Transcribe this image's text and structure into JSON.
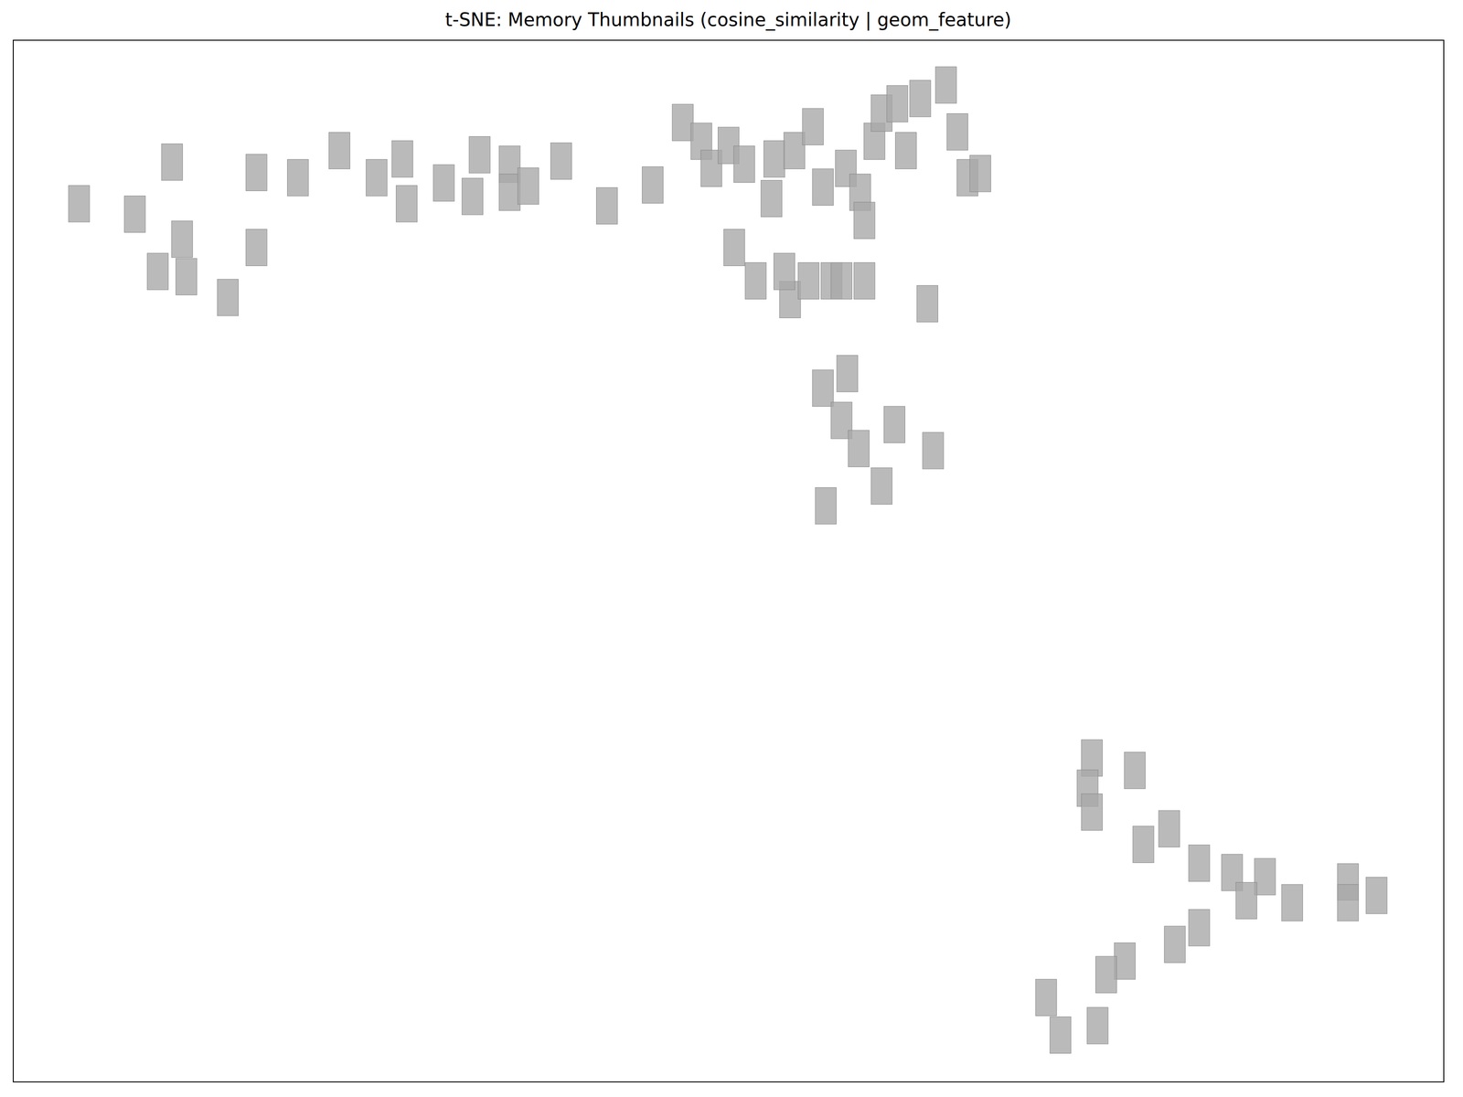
{
  "chart_data": {
    "type": "scatter",
    "title": "t-SNE: Memory Thumbnails (cosine_similarity | geom_feature)",
    "x": [
      4.6,
      8.5,
      11.1,
      11.8,
      10.1,
      12.1,
      15.0,
      17.0,
      17.0,
      19.9,
      22.8,
      25.4,
      27.2,
      27.5,
      30.1,
      32.6,
      32.1,
      34.7,
      34.7,
      36.0,
      38.3,
      41.5,
      44.7,
      46.8,
      48.1,
      48.8,
      50.0,
      51.1,
      50.4,
      51.9,
      53.2,
      53.0,
      54.3,
      53.9,
      54.6,
      55.9,
      55.6,
      56.6,
      57.2,
      58.2,
      57.9,
      59.5,
      59.2,
      60.2,
      60.7,
      61.8,
      62.4,
      63.4,
      65.2,
      66.0,
      66.7,
      67.6,
      63.9,
      56.6,
      57.9,
      58.3,
      59.1,
      61.6,
      64.3,
      60.7,
      56.8,
      59.5,
      75.4,
      78.4,
      75.1,
      75.4,
      80.8,
      79.0,
      82.9,
      85.2,
      87.5,
      93.3,
      95.3,
      86.2,
      89.4,
      93.3,
      81.2,
      77.7,
      76.4,
      72.2,
      75.8,
      73.2,
      82.9
    ],
    "values": [
      84.3,
      83.3,
      88.3,
      80.9,
      77.8,
      77.3,
      75.3,
      80.1,
      87.3,
      86.8,
      89.4,
      86.8,
      88.6,
      84.3,
      86.3,
      89.0,
      85.0,
      88.1,
      85.4,
      86.0,
      88.4,
      84.1,
      86.1,
      92.1,
      90.3,
      87.7,
      89.9,
      88.1,
      80.1,
      76.9,
      88.6,
      84.8,
      75.1,
      77.8,
      89.4,
      91.7,
      76.9,
      85.9,
      76.9,
      87.7,
      76.9,
      76.9,
      85.4,
      90.3,
      93.0,
      93.9,
      89.4,
      94.4,
      95.7,
      91.2,
      86.8,
      87.2,
      74.7,
      66.6,
      63.5,
      68.0,
      60.8,
      63.1,
      60.6,
      57.2,
      55.3,
      82.7,
      31.1,
      29.9,
      28.2,
      25.9,
      24.3,
      22.8,
      21.0,
      20.1,
      19.7,
      19.2,
      17.9,
      17.4,
      17.2,
      17.2,
      13.2,
      11.6,
      10.3,
      8.1,
      5.4,
      4.5,
      14.8
    ],
    "xlim": [
      0,
      100
    ],
    "ylim": [
      0,
      100
    ],
    "tick_labels": false,
    "grid": false,
    "marker": "square",
    "color": "#a9a9a9"
  }
}
